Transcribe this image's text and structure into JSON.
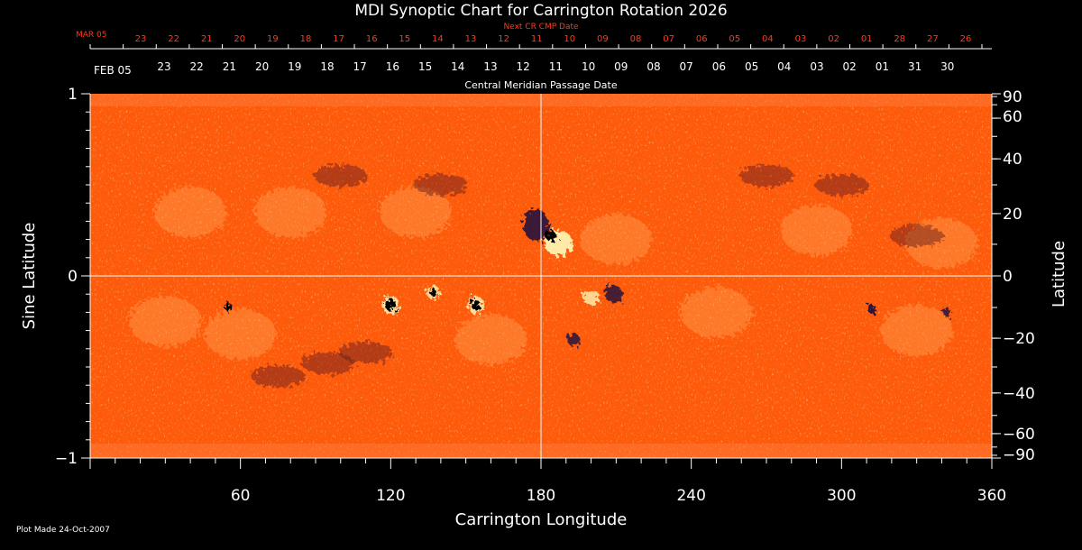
{
  "chart_data": {
    "type": "heatmap",
    "title": "MDI Synoptic Chart for Carrington Rotation 2026",
    "xlabel": "Carrington Longitude",
    "ylabel_left": "Sine Latitude",
    "ylabel_right": "Latitude",
    "top_axis_title": "Central Meridian Passage Date",
    "next_axis_title": "Next CR CMP Date",
    "xlim": [
      0,
      360
    ],
    "ylim": [
      -1,
      1
    ],
    "x_ticks": [
      "60",
      "120",
      "180",
      "240",
      "300",
      "360"
    ],
    "x_tick_values": [
      60,
      120,
      180,
      240,
      300,
      360
    ],
    "y_left_ticks": [
      "1",
      "0",
      "−1"
    ],
    "y_left_values": [
      1,
      0,
      -1
    ],
    "y_right_ticks": [
      "90",
      "60",
      "40",
      "20",
      "0",
      "−20",
      "−40",
      "−60",
      "−90"
    ],
    "y_right_values": [
      90,
      60,
      40,
      20,
      0,
      -20,
      -40,
      -60,
      -90
    ],
    "cmp_month_label": "FEB 05",
    "cmp_dates": [
      "23",
      "22",
      "21",
      "20",
      "19",
      "18",
      "17",
      "16",
      "15",
      "14",
      "13",
      "12",
      "11",
      "10",
      "09",
      "08",
      "07",
      "06",
      "05",
      "04",
      "03",
      "02",
      "01",
      "31",
      "30"
    ],
    "next_cr_month_label": "MAR 05",
    "next_cr_dates": [
      "23",
      "22",
      "21",
      "20",
      "19",
      "18",
      "17",
      "16",
      "15",
      "14",
      "13",
      "12",
      "11",
      "10",
      "09",
      "08",
      "07",
      "06",
      "05",
      "04",
      "03",
      "02",
      "01",
      "28",
      "27",
      "26"
    ],
    "footer": "Plot Made 24-Oct-2007",
    "colors": {
      "background": "#000000",
      "field_base": "#ff5a0a",
      "positive": "#fff2b0",
      "negative": "#1a1040",
      "next_cr_text": "#ff3a1a"
    },
    "grid": "crosshair at 180 / 0"
  }
}
